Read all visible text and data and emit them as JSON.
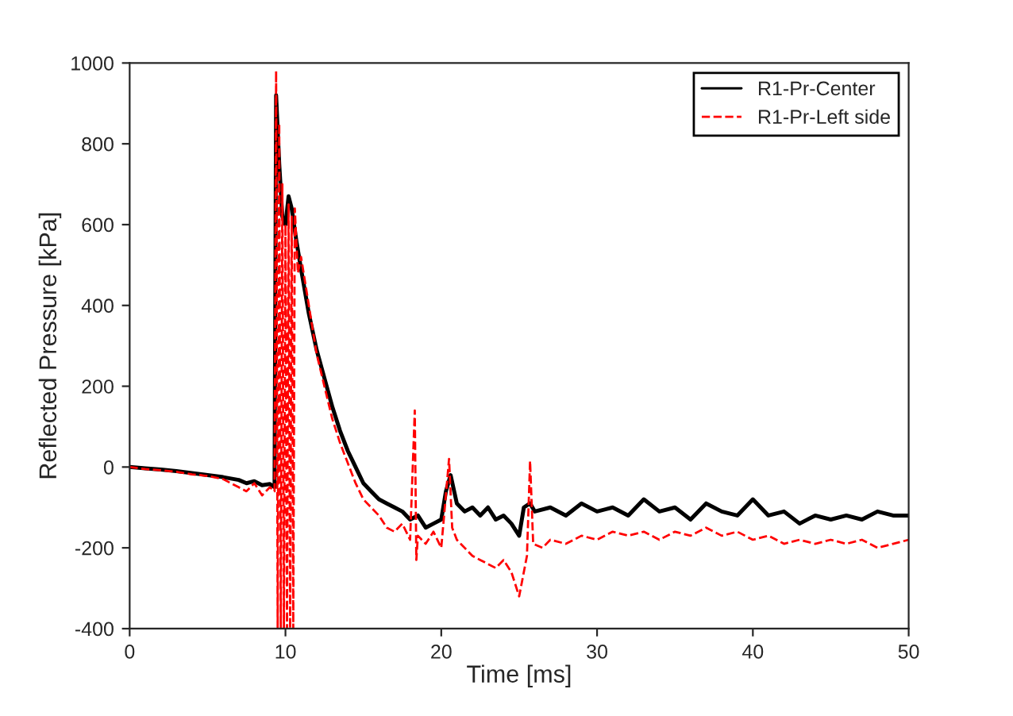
{
  "chart_data": {
    "type": "line",
    "xlabel": "Time [ms]",
    "ylabel": "Reflected Pressure [kPa]",
    "xlim": [
      0,
      50
    ],
    "ylim": [
      -400,
      1000
    ],
    "xticks": [
      0,
      10,
      20,
      30,
      40,
      50
    ],
    "yticks": [
      -400,
      -200,
      0,
      200,
      400,
      600,
      800,
      1000
    ],
    "grid": false,
    "legend": "top right",
    "series": [
      {
        "name": "R1-Pr-Center",
        "color": "#000000",
        "line_style": "solid",
        "x": [
          0,
          1,
          2,
          3,
          4,
          5,
          6,
          7,
          7.5,
          8,
          8.5,
          9,
          9.3,
          9.4,
          9.6,
          9.8,
          10,
          10.2,
          10.4,
          10.7,
          11,
          11.5,
          12,
          12.5,
          13,
          13.5,
          14,
          14.5,
          15,
          15.5,
          16,
          16.5,
          17,
          17.5,
          18,
          18.5,
          19,
          19.5,
          20,
          20.3,
          20.6,
          21,
          21.5,
          22,
          22.5,
          23,
          23.5,
          24,
          24.5,
          25,
          25.3,
          25.7,
          26,
          27,
          28,
          29,
          30,
          31,
          32,
          33,
          34,
          35,
          36,
          37,
          38,
          39,
          40,
          41,
          42,
          43,
          44,
          45,
          46,
          47,
          48,
          49,
          50
        ],
        "values": [
          0,
          -3,
          -6,
          -10,
          -15,
          -20,
          -25,
          -32,
          -40,
          -35,
          -45,
          -42,
          -50,
          920,
          750,
          620,
          600,
          670,
          640,
          560,
          490,
          380,
          290,
          220,
          150,
          90,
          40,
          0,
          -40,
          -60,
          -80,
          -90,
          -100,
          -110,
          -130,
          -120,
          -150,
          -140,
          -130,
          -60,
          -20,
          -90,
          -110,
          -100,
          -120,
          -100,
          -130,
          -120,
          -140,
          -170,
          -100,
          -90,
          -110,
          -100,
          -120,
          -90,
          -110,
          -100,
          -120,
          -80,
          -110,
          -100,
          -130,
          -90,
          -110,
          -120,
          -80,
          -120,
          -110,
          -140,
          -120,
          -130,
          -120,
          -130,
          -110,
          -120,
          -120
        ]
      },
      {
        "name": "R1-Pr-Left side",
        "color": "#ff0000",
        "line_style": "dashed",
        "x": [
          0,
          1,
          2,
          3,
          4,
          5,
          6,
          7,
          7.5,
          8,
          8.5,
          9,
          9.3,
          9.4,
          9.5,
          9.6,
          9.7,
          9.8,
          9.9,
          10,
          10.1,
          10.2,
          10.3,
          10.4,
          10.5,
          10.6,
          10.8,
          11,
          11.5,
          12,
          12.5,
          13,
          13.5,
          14,
          14.5,
          15,
          15.5,
          16,
          16.5,
          17,
          17.5,
          18,
          18.3,
          18.4,
          18.5,
          19,
          19.5,
          20,
          20.5,
          20.7,
          21,
          21.5,
          22,
          22.5,
          23,
          23.5,
          24,
          24.5,
          25,
          25.5,
          25.7,
          25.9,
          26.5,
          27,
          28,
          29,
          30,
          31,
          32,
          33,
          34,
          35,
          36,
          37,
          38,
          39,
          40,
          41,
          42,
          43,
          44,
          45,
          46,
          47,
          48,
          49,
          50
        ],
        "values": [
          0,
          -5,
          -8,
          -12,
          -18,
          -22,
          -30,
          -50,
          -60,
          -40,
          -70,
          -50,
          -60,
          980,
          -400,
          850,
          -400,
          700,
          -400,
          600,
          -400,
          650,
          -400,
          620,
          -400,
          640,
          480,
          520,
          400,
          280,
          200,
          120,
          60,
          10,
          -40,
          -80,
          -100,
          -120,
          -150,
          -160,
          -140,
          -180,
          140,
          -230,
          -170,
          -190,
          -160,
          -200,
          20,
          -150,
          -180,
          -200,
          -220,
          -230,
          -240,
          -250,
          -230,
          -260,
          -320,
          -220,
          15,
          -190,
          -200,
          -180,
          -190,
          -170,
          -180,
          -160,
          -170,
          -160,
          -180,
          -160,
          -170,
          -150,
          -170,
          -160,
          -180,
          -170,
          -190,
          -180,
          -190,
          -180,
          -190,
          -180,
          -200,
          -190,
          -180
        ]
      }
    ]
  }
}
